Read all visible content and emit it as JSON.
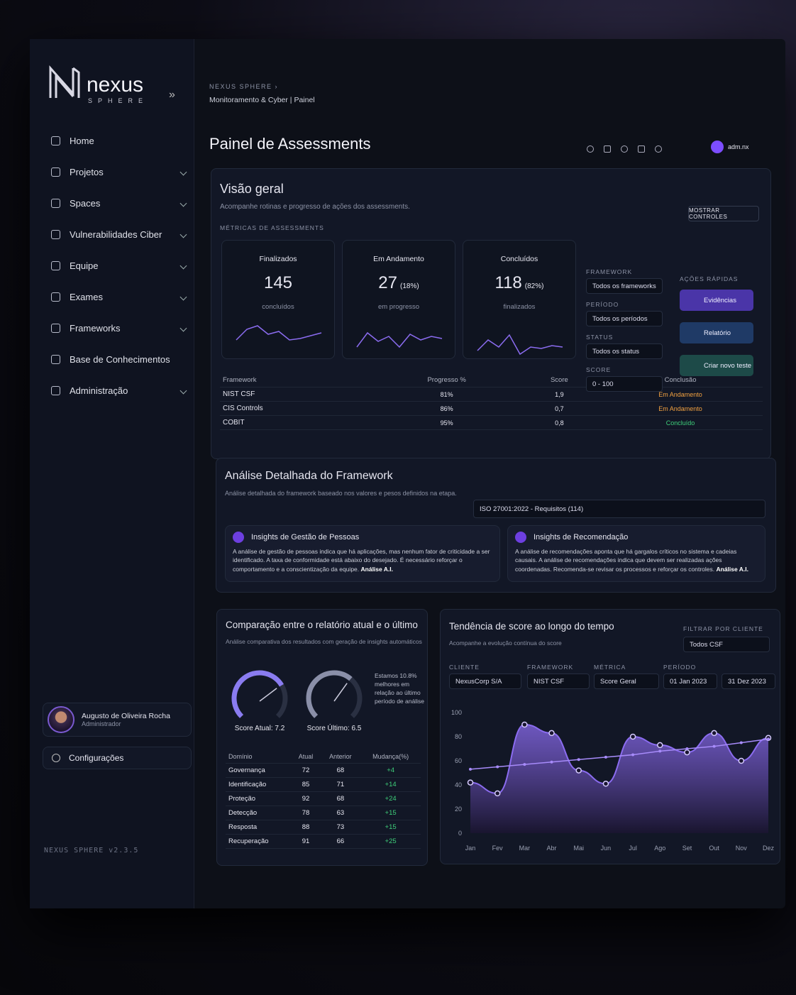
{
  "brand": {
    "name": "nexus",
    "sub": "SPHERE"
  },
  "breadcrumb": {
    "root": "NEXUS SPHERE",
    "current": "Monitoramento & Cyber",
    "page": "Painel"
  },
  "page_title": "Painel de Assessments",
  "user_menu": "adm.nx",
  "nav": [
    "Home",
    "Projetos",
    "Spaces",
    "Vulnerabilidades Ciber",
    "Equipe",
    "Exames",
    "Frameworks",
    "Base de Conhecimentos",
    "Administração"
  ],
  "profile": {
    "name": "Augusto de Oliveira Rocha",
    "role": "Administrador"
  },
  "settings": "Configurações",
  "version": "NEXUS SPHERE v2.3.5",
  "overview": {
    "title": "Visão geral",
    "subtitle": "Acompanhe rotinas e progresso de ações dos assessments.",
    "button": "MOSTRAR CONTROLES",
    "section_label": "MÉTRICAS DE ASSESSMENTS",
    "metrics": [
      {
        "label": "Finalizados",
        "value": "145",
        "note": "concluídos"
      },
      {
        "label": "Em Andamento",
        "value": "27",
        "pct": "(18%)",
        "note": "em progresso"
      },
      {
        "label": "Concluídos",
        "value": "118",
        "pct": "(82%)",
        "note": "finalizados"
      }
    ],
    "filters": [
      {
        "label": "FRAMEWORK",
        "value": "Todos os frameworks"
      },
      {
        "label": "PERÍODO",
        "value": "Todos os períodos"
      },
      {
        "label": "STATUS",
        "value": "Todos os status"
      },
      {
        "label": "SCORE",
        "value": "0 - 100"
      }
    ],
    "quick_actions": {
      "label": "AÇÕES RÁPIDAS",
      "items": [
        "Evidências",
        "Relatório",
        "Criar novo teste"
      ]
    },
    "table": {
      "headers": [
        "Framework",
        "Progresso %",
        "Score",
        "Conclusão"
      ],
      "rows": [
        [
          "NIST CSF",
          "81%",
          "1,9",
          "Em Andamento"
        ],
        [
          "CIS Controls",
          "86%",
          "0,7",
          "Em Andamento"
        ],
        [
          "COBIT",
          "95%",
          "0,8",
          "Concluído"
        ]
      ]
    }
  },
  "analysis": {
    "title": "Análise Detalhada do Framework",
    "subtitle": "Análise detalhada do framework baseado nos valores e pesos definidos na etapa.",
    "select": "ISO 27001:2022 - Requisitos (114)",
    "insights": [
      {
        "title": "Insights de Gestão de Pessoas",
        "text": "A análise de gestão de pessoas indica que há aplicações, mas nenhum fator de criticidade a ser identificado. A taxa de conformidade está abaixo do desejado. É necessário reforçar o comportamento e a conscientização da equipe.",
        "tag": "Análise A.I."
      },
      {
        "title": "Insights de Recomendação",
        "text": "A análise de recomendações aponta que há gargalos críticos no sistema e cadeias causais. A análise de recomendações indica que devem ser realizadas ações coordenadas. Recomenda-se revisar os processos e reforçar os controles.",
        "tag": "Análise A.I."
      }
    ]
  },
  "comparison": {
    "title": "Comparação entre o relatório atual e o último",
    "subtitle": "Análise comparativa dos resultados com geração de insights automáticos",
    "gauge_range": [
      0,
      10
    ],
    "gauges": [
      {
        "label": "Score Atual:",
        "value": 7.2
      },
      {
        "label": "Score Último:",
        "value": 6.5
      }
    ],
    "note": "Estamos 10.8% melhores em relação ao último período de análise",
    "table": {
      "headers": [
        "Domínio",
        "Atual",
        "Anterior",
        "Mudança(%)"
      ],
      "rows": [
        [
          "Governança",
          "72",
          "68",
          "+4"
        ],
        [
          "Identificação",
          "85",
          "71",
          "+14"
        ],
        [
          "Proteção",
          "92",
          "68",
          "+24"
        ],
        [
          "Detecção",
          "78",
          "63",
          "+15"
        ],
        [
          "Resposta",
          "88",
          "73",
          "+15"
        ],
        [
          "Recuperação",
          "91",
          "66",
          "+25"
        ]
      ]
    }
  },
  "trend_filters": {
    "client_filter": {
      "label": "FILTRAR POR CLIENTE",
      "value": "Todos CSF"
    },
    "fields": [
      {
        "label": "CLIENTE",
        "value": "NexusCorp S/A"
      },
      {
        "label": "FRAMEWORK",
        "value": "NIST CSF"
      },
      {
        "label": "MÉTRICA",
        "value": "Score Geral"
      },
      {
        "label": "PERÍODO",
        "value": "01 Jan 2023"
      },
      {
        "label": "",
        "value": "31 Dez 2023"
      }
    ]
  },
  "chart_data": {
    "type": "line",
    "title": "Tendência de score ao longo do tempo",
    "subtitle": "Acompanhe a evolução contínua do score",
    "categories": [
      "Jan",
      "Fev",
      "Mar",
      "Abr",
      "Mai",
      "Jun",
      "Jul",
      "Ago",
      "Set",
      "Out",
      "Nov",
      "Dez"
    ],
    "series": [
      {
        "color": "#8b6cf0",
        "values": [
          42,
          33,
          90,
          83,
          52,
          41,
          80,
          73,
          67,
          83,
          60,
          79
        ]
      },
      {
        "color": "#a78bfa",
        "values": [
          53,
          55,
          57,
          59,
          61,
          63,
          65,
          68,
          70,
          72,
          75,
          78
        ]
      }
    ],
    "ylim": [
      0,
      100
    ],
    "yticks": [
      0,
      20,
      40,
      60,
      80,
      100
    ],
    "grid": false
  }
}
